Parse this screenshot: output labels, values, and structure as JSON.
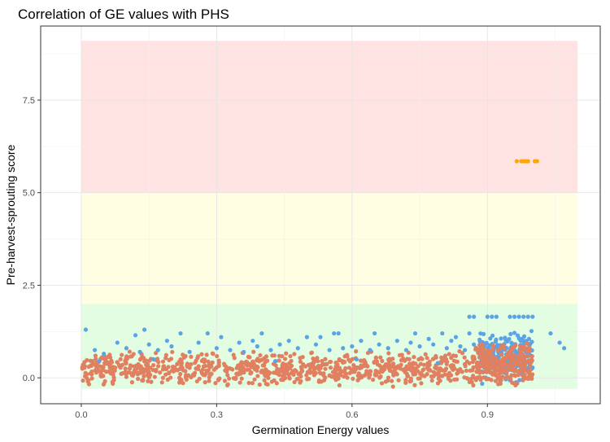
{
  "chart_data": {
    "type": "scatter",
    "title": "Correlation of GE values with PHS",
    "xlabel": "Germination Energy values",
    "ylabel": "Pre-harvest-sprouting score",
    "xlim": [
      -0.09,
      1.15
    ],
    "ylim": [
      -0.7,
      9.5
    ],
    "x_ticks": [
      0.0,
      0.3,
      0.6,
      0.9
    ],
    "x_tick_labels": [
      "0.0",
      "0.3",
      "0.6",
      "0.9"
    ],
    "y_ticks": [
      0.0,
      2.5,
      5.0,
      7.5
    ],
    "y_tick_labels": [
      "0.0",
      "2.5",
      "5.0",
      "7.5"
    ],
    "grid": true,
    "bands": [
      {
        "ymin": -0.3,
        "ymax": 2.0,
        "xmin": 0.0,
        "xmax": 1.1,
        "color": "#e3fde3"
      },
      {
        "ymin": 2.0,
        "ymax": 5.0,
        "xmin": 0.0,
        "xmax": 1.1,
        "color": "#fffee3"
      },
      {
        "ymin": 5.0,
        "ymax": 9.1,
        "xmin": 0.0,
        "xmax": 1.1,
        "color": "#ffe3e3"
      }
    ],
    "series": [
      {
        "color": "#5aa4e6",
        "points": [
          [
            0.01,
            1.3
          ],
          [
            0.03,
            0.75
          ],
          [
            0.05,
            0.65
          ],
          [
            0.08,
            0.95
          ],
          [
            0.1,
            0.8
          ],
          [
            0.12,
            1.15
          ],
          [
            0.13,
            0.7
          ],
          [
            0.14,
            1.3
          ],
          [
            0.15,
            0.9
          ],
          [
            0.17,
            0.75
          ],
          [
            0.19,
            1.0
          ],
          [
            0.2,
            0.85
          ],
          [
            0.22,
            1.2
          ],
          [
            0.24,
            0.7
          ],
          [
            0.26,
            0.95
          ],
          [
            0.28,
            1.2
          ],
          [
            0.3,
            0.8
          ],
          [
            0.31,
            1.1
          ],
          [
            0.33,
            0.75
          ],
          [
            0.35,
            0.95
          ],
          [
            0.36,
            0.7
          ],
          [
            0.38,
            1.0
          ],
          [
            0.39,
            0.85
          ],
          [
            0.4,
            1.2
          ],
          [
            0.42,
            0.75
          ],
          [
            0.44,
            0.9
          ],
          [
            0.46,
            1.0
          ],
          [
            0.48,
            0.8
          ],
          [
            0.5,
            1.1
          ],
          [
            0.52,
            0.9
          ],
          [
            0.53,
            1.1
          ],
          [
            0.55,
            0.75
          ],
          [
            0.56,
            1.2
          ],
          [
            0.57,
            1.2
          ],
          [
            0.58,
            0.8
          ],
          [
            0.6,
            0.85
          ],
          [
            0.62,
            1.0
          ],
          [
            0.64,
            0.75
          ],
          [
            0.65,
            1.2
          ],
          [
            0.66,
            0.9
          ],
          [
            0.68,
            0.8
          ],
          [
            0.7,
            1.0
          ],
          [
            0.72,
            0.75
          ],
          [
            0.73,
            0.95
          ],
          [
            0.74,
            1.2
          ],
          [
            0.75,
            0.85
          ],
          [
            0.77,
            1.05
          ],
          [
            0.78,
            0.9
          ],
          [
            0.8,
            1.2
          ],
          [
            0.81,
            0.8
          ],
          [
            0.82,
            1.0
          ],
          [
            0.83,
            1.1
          ],
          [
            0.84,
            0.85
          ],
          [
            0.85,
            0.75
          ],
          [
            0.86,
            1.2
          ],
          [
            0.87,
            0.9
          ],
          [
            0.86,
            1.65
          ],
          [
            0.87,
            1.65
          ],
          [
            0.9,
            1.65
          ],
          [
            0.91,
            1.65
          ],
          [
            0.92,
            1.65
          ],
          [
            0.95,
            1.65
          ],
          [
            0.96,
            1.65
          ],
          [
            0.97,
            1.65
          ],
          [
            0.98,
            1.65
          ],
          [
            0.99,
            1.65
          ],
          [
            1.0,
            1.65
          ],
          [
            1.04,
            1.2
          ],
          [
            1.06,
            0.95
          ],
          [
            1.07,
            0.8
          ],
          [
            0.04,
            0.45
          ],
          [
            0.16,
            0.5
          ],
          [
            0.43,
            0.45
          ],
          [
            0.61,
            0.5
          ],
          [
            0.79,
            0.4
          ]
        ]
      },
      {
        "color": "#ffa500",
        "points": [
          [
            0.965,
            5.85
          ],
          [
            0.975,
            5.85
          ],
          [
            0.98,
            5.85
          ],
          [
            0.985,
            5.85
          ],
          [
            0.99,
            5.85
          ],
          [
            1.005,
            5.85
          ],
          [
            1.01,
            5.85
          ]
        ]
      }
    ],
    "generated_series": [
      {
        "color": "#5aa4e6",
        "n": 260,
        "xmin": 0.88,
        "xmax": 1.0,
        "ymin": -0.2,
        "ymax": 1.3,
        "seed": 11
      },
      {
        "color": "#e08060",
        "n": 850,
        "xmin": 0.0,
        "xmax": 0.87,
        "ymin": -0.25,
        "ymax": 0.75,
        "seed": 23
      },
      {
        "color": "#e08060",
        "n": 280,
        "xmin": 0.87,
        "xmax": 1.0,
        "ymin": -0.25,
        "ymax": 1.0,
        "seed": 37
      }
    ]
  }
}
